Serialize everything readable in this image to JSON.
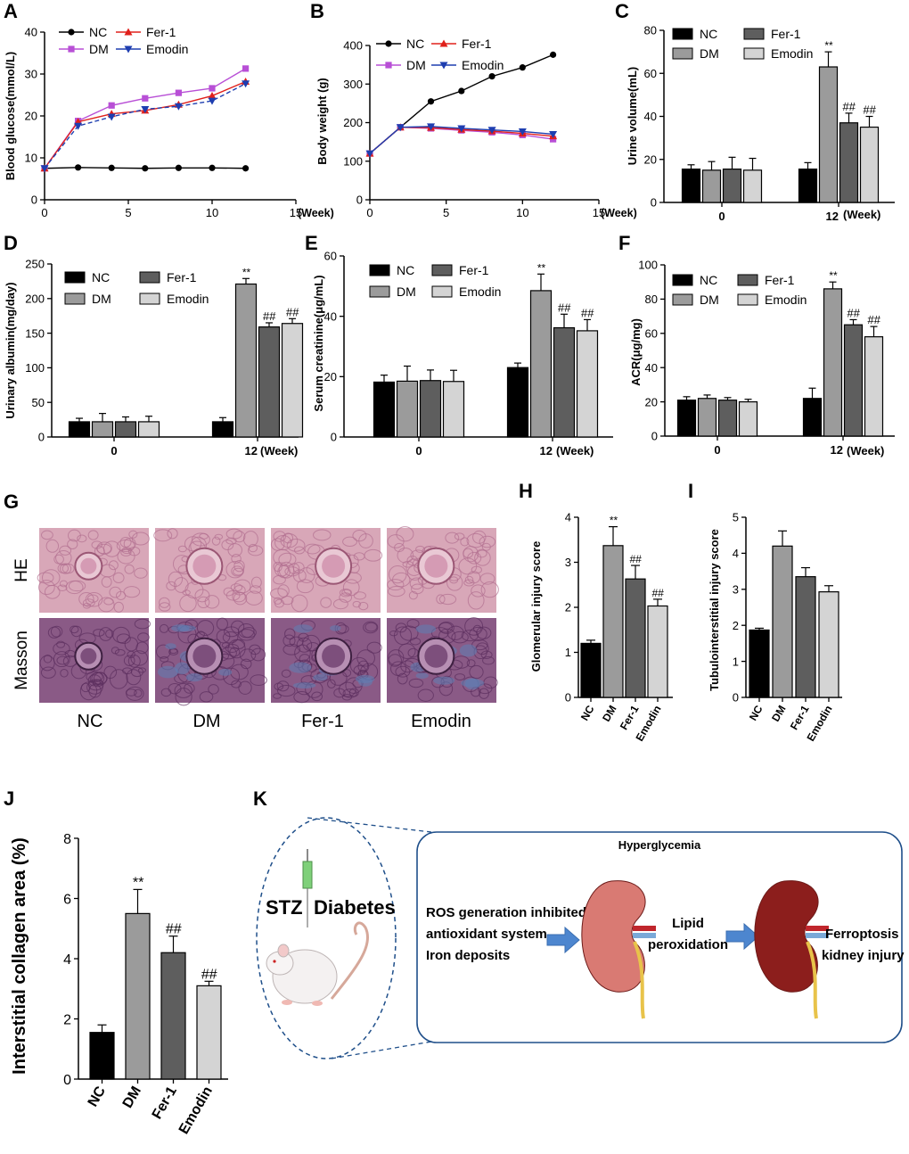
{
  "colors": {
    "NC": "#000000",
    "DM": "#9b9b9b",
    "Fer1": "#5e5e5e",
    "Emodin": "#d4d4d4",
    "line_NC": "#000000",
    "line_DM": "#b84fd6",
    "line_Fer1": "#e0201b",
    "line_Emodin": "#1e3eb0",
    "arrow": "#4d86cf",
    "box": "#1f4f8a",
    "kidney_light": "#d97a73",
    "kidney_dark": "#8c1e1c"
  },
  "panel_labels": {
    "A": "A",
    "B": "B",
    "C": "C",
    "D": "D",
    "E": "E",
    "F": "F",
    "G": "G",
    "H": "H",
    "I": "I",
    "J": "J",
    "K": "K"
  },
  "histology": {
    "row_labels": [
      "HE",
      "Masson"
    ],
    "col_labels": [
      "NC",
      "DM",
      "Fer-1",
      "Emodin"
    ],
    "tissue_colors": {
      "HE": "#d8a7b8",
      "Masson": "#8a5a86"
    }
  },
  "schematic": {
    "title": "Hyperglycemia",
    "stz": "STZ",
    "diabetes": "Diabetes",
    "left_text": [
      "ROS generation inhibited",
      "antioxidant system",
      "Iron deposits"
    ],
    "middle_text": [
      "Lipid",
      "peroxidation"
    ],
    "right_text": [
      "Ferroptosis",
      "kidney injury"
    ],
    "icons": [
      "syringe-icon",
      "rat-icon",
      "kidney-icon",
      "arrow-icon"
    ]
  },
  "chart_data": [
    {
      "id": "A",
      "type": "line",
      "xlabel": "(Week)",
      "ylabel": "Blood glucose(mmol/L)",
      "xlim": [
        0,
        15
      ],
      "ylim": [
        0,
        40
      ],
      "xticks": [
        "0",
        "5",
        "10",
        "15"
      ],
      "yticks": [
        "0",
        "10",
        "20",
        "30",
        "40"
      ],
      "legend": [
        "NC",
        "Fer-1",
        "DM",
        "Emodin"
      ],
      "x": [
        0,
        2,
        4,
        6,
        8,
        10,
        12
      ],
      "series": [
        {
          "name": "NC",
          "values": [
            7.5,
            7.7,
            7.6,
            7.5,
            7.6,
            7.6,
            7.5
          ]
        },
        {
          "name": "DM",
          "values": [
            7.5,
            18.8,
            22.5,
            24.2,
            25.5,
            26.6,
            31.3
          ]
        },
        {
          "name": "Fer-1",
          "values": [
            7.5,
            18.6,
            20.5,
            21.3,
            22.7,
            24.8,
            28.2
          ]
        },
        {
          "name": "Emodin",
          "values": [
            7.5,
            17.6,
            19.8,
            21.6,
            22.3,
            23.6,
            27.7
          ]
        }
      ]
    },
    {
      "id": "B",
      "type": "line",
      "xlabel": "(Week)",
      "ylabel": "Body weight (g)",
      "xlim": [
        0,
        15
      ],
      "ylim": [
        0,
        400
      ],
      "xticks": [
        "0",
        "5",
        "10",
        "15"
      ],
      "yticks": [
        "0",
        "100",
        "200",
        "300",
        "400"
      ],
      "legend": [
        "NC",
        "Fer-1",
        "DM",
        "Emodin"
      ],
      "x": [
        0,
        2,
        4,
        6,
        8,
        10,
        12
      ],
      "series": [
        {
          "name": "NC",
          "values": [
            120,
            188,
            255,
            282,
            320,
            343,
            376
          ]
        },
        {
          "name": "DM",
          "values": [
            120,
            188,
            185,
            180,
            175,
            168,
            157
          ]
        },
        {
          "name": "Fer-1",
          "values": [
            120,
            188,
            187,
            182,
            178,
            172,
            165
          ]
        },
        {
          "name": "Emodin",
          "values": [
            120,
            188,
            190,
            185,
            181,
            177,
            170
          ]
        }
      ]
    },
    {
      "id": "C",
      "type": "bar",
      "xlabel": "(Week)",
      "ylabel": "Urine volume(mL)",
      "ylim": [
        0,
        80
      ],
      "yticks": [
        "0",
        "20",
        "40",
        "60",
        "80"
      ],
      "categories": [
        "0",
        "12"
      ],
      "legend": [
        "NC",
        "Fer-1",
        "DM",
        "Emodin"
      ],
      "series": [
        {
          "name": "NC",
          "values": [
            15.5,
            15.5
          ],
          "errors": [
            2,
            3
          ]
        },
        {
          "name": "DM",
          "values": [
            15,
            63
          ],
          "errors": [
            4,
            7
          ]
        },
        {
          "name": "Fer-1",
          "values": [
            15.5,
            37
          ],
          "errors": [
            5.5,
            4.5
          ]
        },
        {
          "name": "Emodin",
          "values": [
            15,
            35
          ],
          "errors": [
            5.5,
            5
          ]
        }
      ],
      "annotations": [
        [
          null,
          "**"
        ],
        [
          null,
          "##"
        ],
        [
          null,
          "##"
        ]
      ]
    },
    {
      "id": "D",
      "type": "bar",
      "xlabel": "(Week)",
      "ylabel": "Urinary albumin(mg/day)",
      "ylim": [
        0,
        250
      ],
      "yticks": [
        "0",
        "50",
        "100",
        "150",
        "200",
        "250"
      ],
      "categories": [
        "0",
        "12"
      ],
      "legend": [
        "NC",
        "Fer-1",
        "DM",
        "Emodin"
      ],
      "series": [
        {
          "name": "NC",
          "values": [
            22,
            22
          ],
          "errors": [
            5,
            6
          ]
        },
        {
          "name": "DM",
          "values": [
            22,
            221
          ],
          "errors": [
            12,
            8
          ]
        },
        {
          "name": "Fer-1",
          "values": [
            22,
            159
          ],
          "errors": [
            7,
            6
          ]
        },
        {
          "name": "Emodin",
          "values": [
            22,
            164
          ],
          "errors": [
            8,
            7
          ]
        }
      ],
      "annotations": [
        [
          null,
          "**"
        ],
        [
          null,
          "##"
        ],
        [
          null,
          "##"
        ]
      ]
    },
    {
      "id": "E",
      "type": "bar",
      "xlabel": "(Week)",
      "ylabel": "Serum creatinine(μg/mL)",
      "ylim": [
        0,
        60
      ],
      "yticks": [
        "0",
        "20",
        "40",
        "60"
      ],
      "categories": [
        "0",
        "12"
      ],
      "legend": [
        "NC",
        "Fer-1",
        "DM",
        "Emodin"
      ],
      "series": [
        {
          "name": "NC",
          "values": [
            18.2,
            23
          ],
          "errors": [
            2.3,
            1.5
          ]
        },
        {
          "name": "DM",
          "values": [
            18.5,
            48.5
          ],
          "errors": [
            5,
            5.5
          ]
        },
        {
          "name": "Fer-1",
          "values": [
            18.7,
            36.2
          ],
          "errors": [
            3.5,
            4.5
          ]
        },
        {
          "name": "Emodin",
          "values": [
            18.4,
            35.2
          ],
          "errors": [
            3.7,
            3.7
          ]
        }
      ],
      "annotations": [
        [
          null,
          "**"
        ],
        [
          null,
          "##"
        ],
        [
          null,
          "##"
        ]
      ]
    },
    {
      "id": "F",
      "type": "bar",
      "xlabel": "(Week)",
      "ylabel": "ACR(μg/mg)",
      "ylim": [
        0,
        100
      ],
      "yticks": [
        "0",
        "20",
        "40",
        "60",
        "80",
        "100"
      ],
      "categories": [
        "0",
        "12"
      ],
      "legend": [
        "NC",
        "Fer-1",
        "DM",
        "Emodin"
      ],
      "series": [
        {
          "name": "NC",
          "values": [
            21,
            22
          ],
          "errors": [
            2,
            6
          ]
        },
        {
          "name": "DM",
          "values": [
            22,
            86
          ],
          "errors": [
            2,
            4
          ]
        },
        {
          "name": "Fer-1",
          "values": [
            21,
            65
          ],
          "errors": [
            1.5,
            3
          ]
        },
        {
          "name": "Emodin",
          "values": [
            20,
            58
          ],
          "errors": [
            1.5,
            6
          ]
        }
      ],
      "annotations": [
        [
          null,
          "**"
        ],
        [
          null,
          "##"
        ],
        [
          null,
          "##"
        ]
      ]
    },
    {
      "id": "H",
      "type": "bar",
      "ylabel": "Glomerular injury score",
      "ylim": [
        0,
        4
      ],
      "yticks": [
        "0",
        "1",
        "2",
        "3",
        "4"
      ],
      "categories": [
        "NC",
        "DM",
        "Fer-1",
        "Emodin"
      ],
      "values": [
        1.2,
        3.37,
        2.63,
        2.03
      ],
      "errors": [
        0.07,
        0.42,
        0.3,
        0.15
      ],
      "annotations": [
        null,
        "**",
        "##",
        "##"
      ]
    },
    {
      "id": "I",
      "type": "bar",
      "ylabel": "Tubulointerstitial injury score",
      "ylim": [
        0,
        5
      ],
      "yticks": [
        "0",
        "1",
        "2",
        "3",
        "4",
        "5"
      ],
      "categories": [
        "NC",
        "DM",
        "Fer-1",
        "Emodin"
      ],
      "values": [
        1.87,
        4.2,
        3.35,
        2.93
      ],
      "errors": [
        0.05,
        0.42,
        0.25,
        0.17
      ],
      "annotations": [
        null,
        null,
        null,
        null
      ]
    },
    {
      "id": "J",
      "type": "bar",
      "ylabel": "Interstitial collagen area (%)",
      "ylim": [
        0,
        8
      ],
      "yticks": [
        "0",
        "2",
        "4",
        "6",
        "8"
      ],
      "categories": [
        "NC",
        "DM",
        "Fer-1",
        "Emodin"
      ],
      "values": [
        1.55,
        5.5,
        4.2,
        3.1
      ],
      "errors": [
        0.25,
        0.8,
        0.55,
        0.15
      ],
      "annotations": [
        null,
        "**",
        "##",
        "##"
      ]
    }
  ]
}
